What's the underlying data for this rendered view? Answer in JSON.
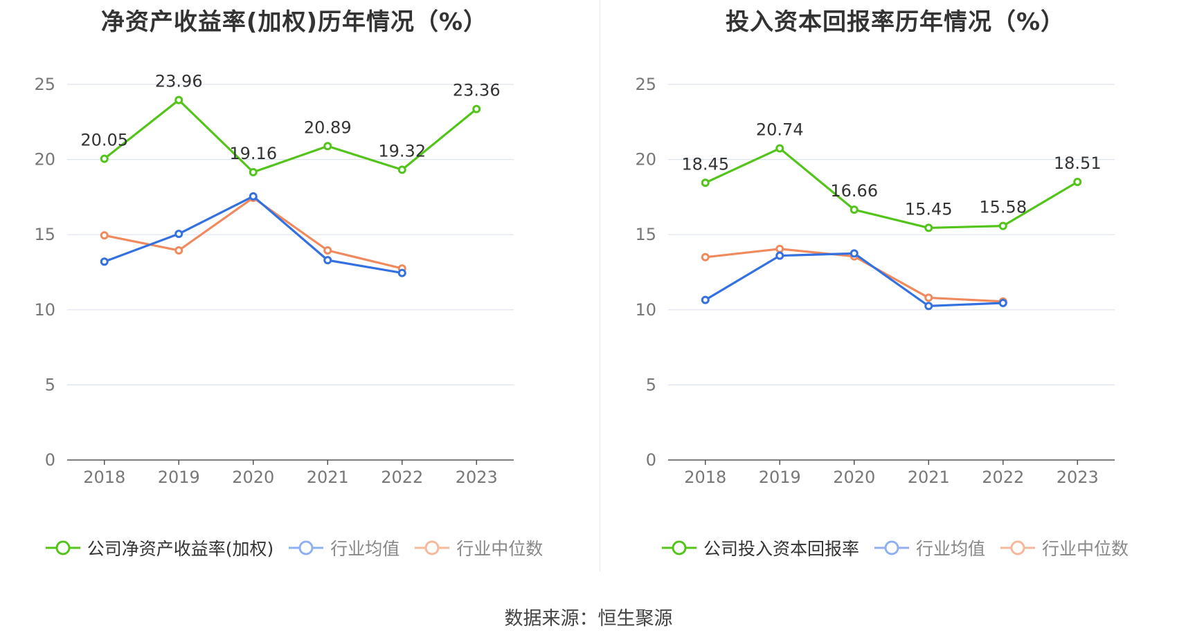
{
  "source": "数据来源：恒生聚源",
  "charts": [
    {
      "title": "净资产收益率(加权)历年情况（%）",
      "legend": [
        "公司净资产收益率(加权)",
        "行业均值",
        "行业中位数"
      ]
    },
    {
      "title": "投入资本回报率历年情况（%）",
      "legend": [
        "公司投入资本回报率",
        "行业均值",
        "行业中位数"
      ]
    }
  ],
  "colors": {
    "company": "#52c41a",
    "mean": "#3370e0",
    "median": "#f08a5d",
    "legend_mean": "#8fb0f0",
    "legend_median": "#f6b89a"
  },
  "chart_data": [
    {
      "type": "line",
      "title": "净资产收益率(加权)历年情况（%）",
      "categories": [
        "2018",
        "2019",
        "2020",
        "2021",
        "2022",
        "2023"
      ],
      "ylim": [
        0,
        25
      ],
      "yticks": [
        0,
        5,
        10,
        15,
        20,
        25
      ],
      "grid": true,
      "legend_position": "bottom",
      "series": [
        {
          "name": "公司净资产收益率(加权)",
          "values": [
            20.05,
            23.96,
            19.16,
            20.89,
            19.32,
            23.36
          ],
          "labels": [
            "20.05",
            "23.96",
            "19.16",
            "20.89",
            "19.32",
            "23.36"
          ]
        },
        {
          "name": "行业均值",
          "values": [
            13.2,
            15.05,
            17.55,
            13.3,
            12.45,
            null
          ]
        },
        {
          "name": "行业中位数",
          "values": [
            14.95,
            13.95,
            17.45,
            13.95,
            12.75,
            null
          ]
        }
      ]
    },
    {
      "type": "line",
      "title": "投入资本回报率历年情况（%）",
      "categories": [
        "2018",
        "2019",
        "2020",
        "2021",
        "2022",
        "2023"
      ],
      "ylim": [
        0,
        25
      ],
      "yticks": [
        0,
        5,
        10,
        15,
        20,
        25
      ],
      "grid": true,
      "legend_position": "bottom",
      "series": [
        {
          "name": "公司投入资本回报率",
          "values": [
            18.45,
            20.74,
            16.66,
            15.45,
            15.58,
            18.51
          ],
          "labels": [
            "18.45",
            "20.74",
            "16.66",
            "15.45",
            "15.58",
            "18.51"
          ]
        },
        {
          "name": "行业均值",
          "values": [
            10.65,
            13.6,
            13.75,
            10.25,
            10.45,
            null
          ]
        },
        {
          "name": "行业中位数",
          "values": [
            13.5,
            14.05,
            13.55,
            10.8,
            10.55,
            null
          ]
        }
      ]
    }
  ]
}
